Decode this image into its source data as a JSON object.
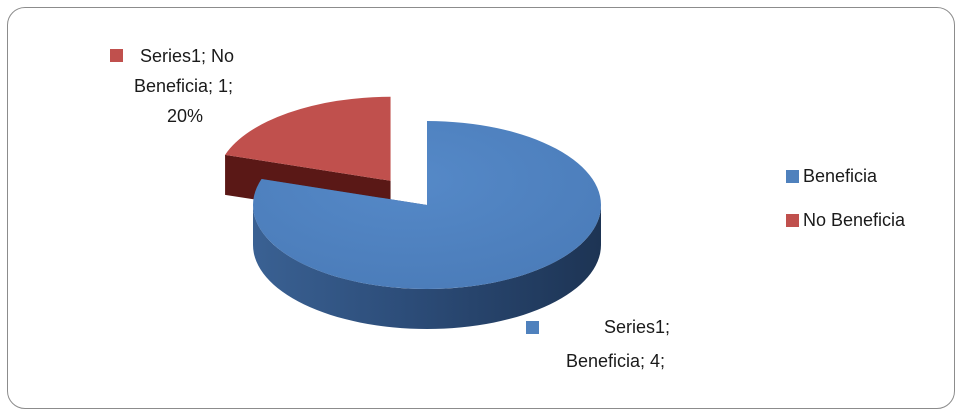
{
  "colors": {
    "beneficia": "#4f81bd",
    "no_beneficia": "#c0504d"
  },
  "chart_data": {
    "type": "pie",
    "style": "3d-exploded",
    "title": "",
    "series_name": "Series1",
    "categories": [
      "Beneficia",
      "No Beneficia"
    ],
    "values": [
      4,
      1
    ],
    "percentages": [
      "80%",
      "20%"
    ],
    "legend_position": "right",
    "data_labels": {
      "no_beneficia": {
        "line1": "Series1; No",
        "line2": "Beneficia; 1;",
        "line3": "20%"
      },
      "beneficia": {
        "line1": "Series1;",
        "line2": "Beneficia; 4;"
      }
    },
    "legend": [
      {
        "label": "Beneficia",
        "color": "#4f81bd"
      },
      {
        "label": "No Beneficia",
        "color": "#c0504d"
      }
    ]
  }
}
